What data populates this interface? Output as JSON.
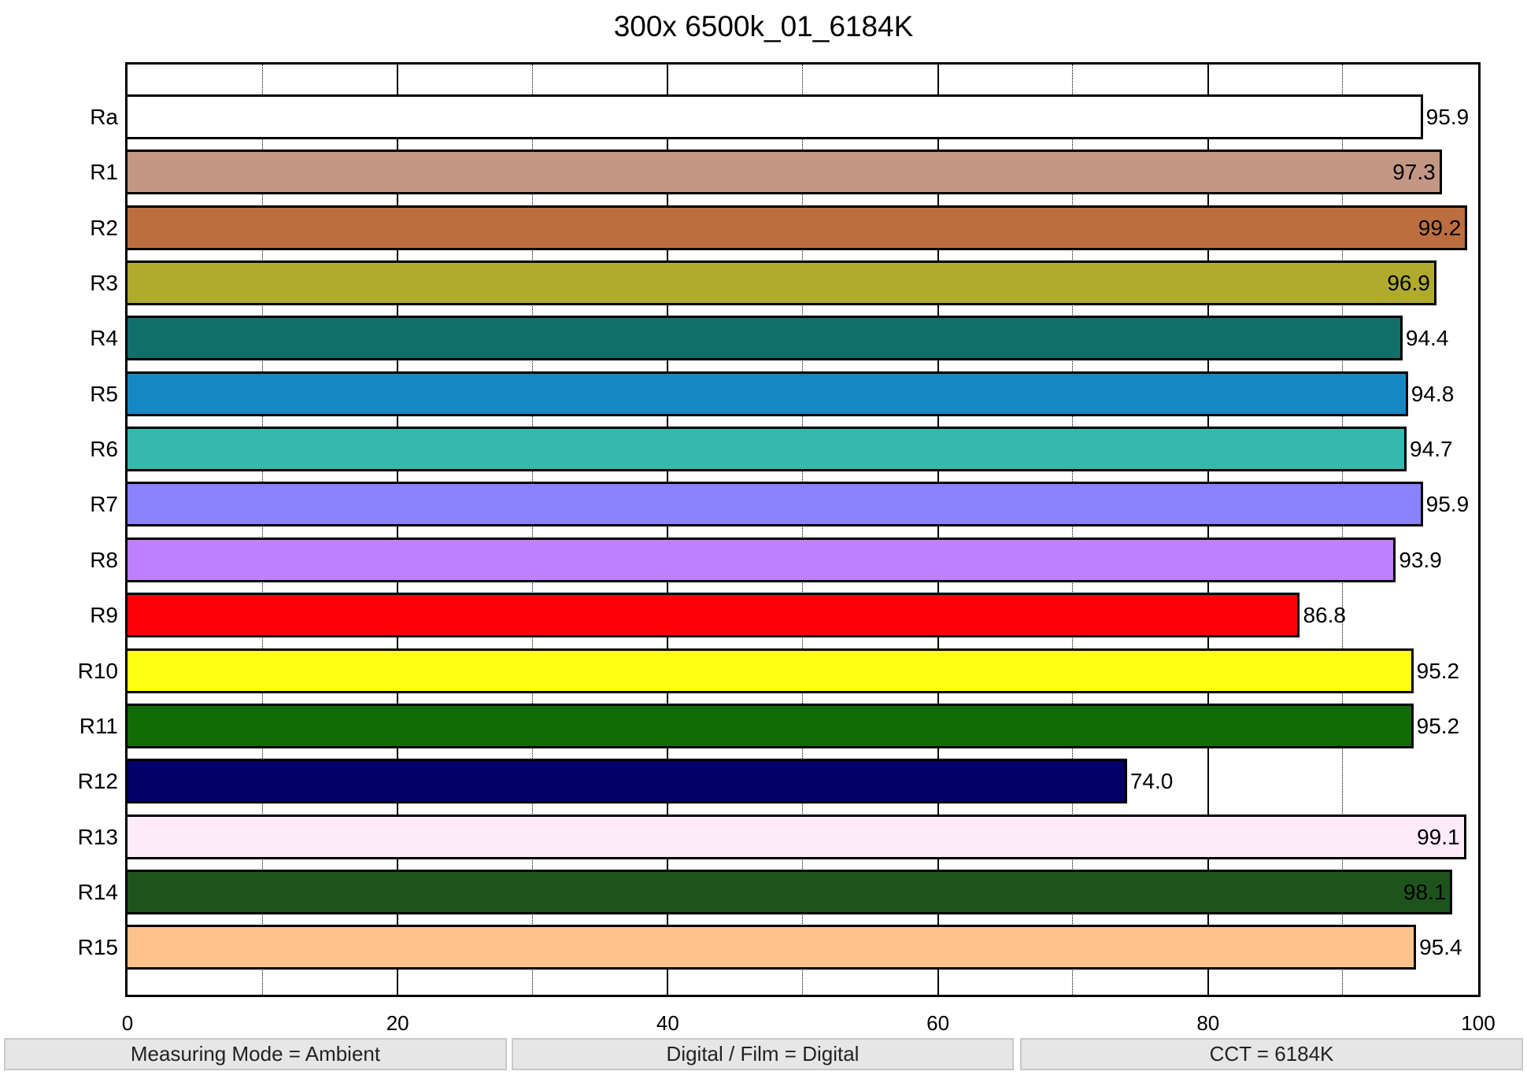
{
  "title": "300x 6500k_01_6184K",
  "chart_data": {
    "type": "bar",
    "orientation": "horizontal",
    "title": "300x 6500k_01_6184K",
    "xlabel": "",
    "ylabel": "",
    "xlim": [
      0,
      100
    ],
    "x_ticks": [
      "0",
      "20",
      "40",
      "60",
      "80",
      "100"
    ],
    "grid": {
      "major_every": 20,
      "minor_every": 10,
      "minor_style": "dotted"
    },
    "categories": [
      "Ra",
      "R1",
      "R2",
      "R3",
      "R4",
      "R5",
      "R6",
      "R7",
      "R8",
      "R9",
      "R10",
      "R11",
      "R12",
      "R13",
      "R14",
      "R15"
    ],
    "values": [
      95.9,
      97.3,
      99.2,
      96.9,
      94.4,
      94.8,
      94.7,
      95.9,
      93.9,
      86.8,
      95.2,
      95.2,
      74.0,
      99.1,
      98.1,
      95.4
    ],
    "value_labels": [
      "95.9",
      "97.3",
      "99.2",
      "96.9",
      "94.4",
      "94.8",
      "94.7",
      "95.9",
      "93.9",
      "86.8",
      "95.2",
      "95.2",
      "74.0",
      "99.1",
      "98.1",
      "95.4"
    ],
    "colors": [
      "#ffffff",
      "#c39784",
      "#bd6e3f",
      "#b0ab2d",
      "#116e6a",
      "#1588c4",
      "#36b8ad",
      "#8c82fe",
      "#bf80fe",
      "#fd0008",
      "#fefe11",
      "#116c08",
      "#030068",
      "#fdebfa",
      "#1d541b",
      "#fec28a"
    ],
    "label_inside": [
      false,
      true,
      true,
      true,
      false,
      false,
      false,
      false,
      false,
      false,
      false,
      false,
      false,
      true,
      true,
      false
    ]
  },
  "status_bar": {
    "measuring_mode": "Measuring Mode = Ambient",
    "digital_film": "Digital / Film = Digital",
    "cct": "CCT = 6184K"
  }
}
